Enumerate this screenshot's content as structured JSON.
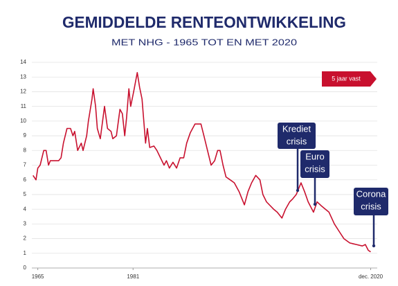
{
  "chart_data": {
    "type": "line",
    "title": "GEMIDDELDE RENTEONTWIKKELING",
    "subtitle": "MET NHG - 1965 TOT EN MET 2020",
    "x": [
      1964.2,
      1964.7,
      1965.0,
      1965.4,
      1966.0,
      1966.4,
      1966.8,
      1967.1,
      1968.5,
      1968.9,
      1969.3,
      1969.9,
      1970.5,
      1970.9,
      1971.2,
      1971.7,
      1972.3,
      1972.6,
      1973.2,
      1973.5,
      1974.1,
      1974.3,
      1974.7,
      1975.0,
      1975.5,
      1976.2,
      1976.7,
      1977.3,
      1977.6,
      1978.2,
      1978.8,
      1979.2,
      1979.6,
      1979.9,
      1980.3,
      1980.6,
      1981.1,
      1981.7,
      1982.1,
      1982.5,
      1982.7,
      1983.1,
      1983.4,
      1983.8,
      1984.5,
      1985.0,
      1985.6,
      1986.2,
      1986.6,
      1987.1,
      1987.7,
      1988.3,
      1988.9,
      1989.5,
      1990.0,
      1990.6,
      1991.4,
      1992.4,
      1992.9,
      1993.5,
      1994.1,
      1994.7,
      1995.2,
      1995.6,
      1996.1,
      1996.6,
      1997.3,
      1998.0,
      1998.8,
      1999.7,
      2000.3,
      2000.9,
      2001.6,
      2002.3,
      2002.8,
      2003.4,
      2004.6,
      2005.2,
      2006.0,
      2006.6,
      2007.3,
      2007.8,
      2008.4,
      2009.2,
      2009.8,
      2010.4,
      2011.3,
      2011.9,
      2012.7,
      2013.3,
      2013.9,
      2014.8,
      2015.6,
      2016.4,
      2017.4,
      2018.5,
      2019.5,
      2020.0,
      2020.5,
      2020.9
    ],
    "series": [
      {
        "name": "5 jaar vast",
        "color": "#c8102e",
        "values": [
          6.3,
          6.0,
          6.8,
          7.0,
          8.0,
          8.0,
          7.0,
          7.3,
          7.3,
          7.5,
          8.5,
          9.5,
          9.5,
          9.0,
          9.3,
          8.0,
          8.5,
          8.0,
          9.0,
          10.0,
          11.5,
          12.2,
          11.0,
          9.5,
          8.8,
          11.0,
          9.5,
          9.3,
          8.8,
          9.0,
          10.8,
          10.5,
          9.0,
          10.2,
          12.2,
          11.0,
          12.0,
          13.3,
          12.3,
          11.5,
          10.5,
          8.5,
          9.5,
          8.2,
          8.3,
          8.0,
          7.5,
          7.0,
          7.3,
          6.8,
          7.2,
          6.8,
          7.5,
          7.5,
          8.5,
          9.2,
          9.8,
          9.8,
          9.0,
          8.0,
          7.0,
          7.3,
          8.0,
          8.0,
          7.0,
          6.2,
          6.0,
          5.8,
          5.2,
          4.3,
          5.2,
          5.8,
          6.3,
          6.0,
          5.0,
          4.5,
          4.0,
          3.8,
          3.4,
          4.0,
          4.5,
          4.7,
          5.0,
          5.8,
          5.2,
          4.5,
          3.8,
          4.5,
          4.2,
          4.0,
          3.8,
          3.0,
          2.5,
          2.0,
          1.7,
          1.6,
          1.5,
          1.6,
          1.2,
          1.1
        ]
      }
    ],
    "xlim": [
      1964,
      2022
    ],
    "xticks": [
      1965,
      1981,
      {
        "value": 2020.9,
        "label": "dec. 2020"
      }
    ],
    "ylim": [
      0,
      14
    ],
    "yticks": [
      0,
      1,
      2,
      3,
      4,
      5,
      6,
      7,
      8,
      9,
      10,
      11,
      12,
      13,
      14
    ],
    "grid": true,
    "annotations": [
      {
        "lines": [
          "Krediet",
          "crisis"
        ]
      },
      {
        "lines": [
          "Euro",
          "crisis"
        ]
      },
      {
        "lines": [
          "Corona",
          "crisis"
        ]
      }
    ]
  }
}
